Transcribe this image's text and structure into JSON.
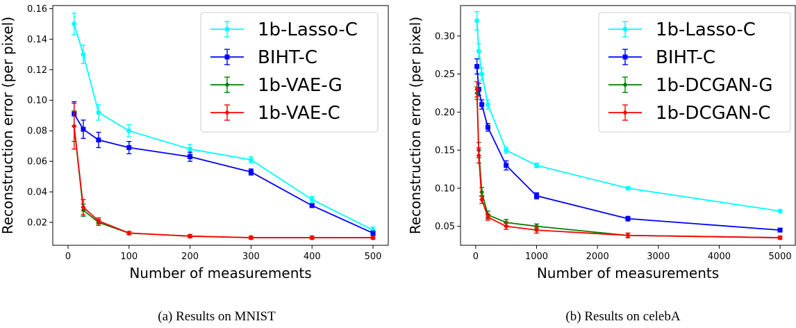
{
  "captions": [
    "(a) Results on MNIST",
    "(b) Results on celebA"
  ],
  "chart_data": [
    {
      "type": "line",
      "xlabel": "Number of measurements",
      "ylabel": "Reconstruction error (per pixel)",
      "xlim": [
        -25,
        525
      ],
      "ylim": [
        0.005,
        0.162
      ],
      "xticks": [
        0,
        100,
        200,
        300,
        400,
        500
      ],
      "yticks": [
        0.02,
        0.04,
        0.06,
        0.08,
        0.1,
        0.12,
        0.14,
        0.16
      ],
      "ytick_labels": [
        "0.02",
        "0.04",
        "0.06",
        "0.08",
        "0.10",
        "0.12",
        "0.14",
        "0.16"
      ],
      "legend_position": "top-right",
      "series": [
        {
          "name": "1b-Lasso-C",
          "color": "#00ffff",
          "marker": "circle",
          "x": [
            10,
            25,
            50,
            100,
            200,
            300,
            400,
            500
          ],
          "y": [
            0.15,
            0.13,
            0.092,
            0.08,
            0.068,
            0.061,
            0.035,
            0.015
          ],
          "err": [
            0.007,
            0.006,
            0.005,
            0.004,
            0.003,
            0.002,
            0.002,
            0.002
          ]
        },
        {
          "name": "BIHT-C",
          "color": "#0000ff",
          "marker": "square",
          "x": [
            10,
            25,
            50,
            100,
            200,
            300,
            400,
            500
          ],
          "y": [
            0.091,
            0.081,
            0.074,
            0.069,
            0.063,
            0.053,
            0.031,
            0.013
          ],
          "err": [
            0.008,
            0.006,
            0.005,
            0.004,
            0.003,
            0.002,
            0.001,
            0.001
          ]
        },
        {
          "name": "1b-VAE-G",
          "color": "#008000",
          "marker": "diamond",
          "x": [
            10,
            25,
            50,
            100,
            200,
            300,
            400,
            500
          ],
          "y": [
            0.083,
            0.028,
            0.02,
            0.013,
            0.011,
            0.01,
            0.01,
            0.01
          ],
          "err": [
            0.01,
            0.004,
            0.002,
            0.001,
            0.001,
            0.001,
            0.001,
            0.001
          ]
        },
        {
          "name": "1b-VAE-C",
          "color": "#ff0000",
          "marker": "diamond",
          "x": [
            10,
            25,
            50,
            100,
            200,
            300,
            400,
            500
          ],
          "y": [
            0.083,
            0.03,
            0.021,
            0.013,
            0.011,
            0.01,
            0.01,
            0.01
          ],
          "err": [
            0.015,
            0.005,
            0.002,
            0.001,
            0.001,
            0.001,
            0.001,
            0.001
          ]
        }
      ]
    },
    {
      "type": "line",
      "xlabel": "Number of measurements",
      "ylabel": "Reconstruction error (per pixel)",
      "xlim": [
        -250,
        5250
      ],
      "ylim": [
        0.025,
        0.34
      ],
      "xticks": [
        0,
        1000,
        2000,
        3000,
        4000,
        5000
      ],
      "yticks": [
        0.05,
        0.1,
        0.15,
        0.2,
        0.25,
        0.3
      ],
      "ytick_labels": [
        "0.05",
        "0.10",
        "0.15",
        "0.20",
        "0.25",
        "0.30"
      ],
      "legend_position": "top-right",
      "series": [
        {
          "name": "1b-Lasso-C",
          "color": "#00ffff",
          "marker": "circle",
          "x": [
            20,
            50,
            100,
            200,
            500,
            1000,
            2500,
            5000
          ],
          "y": [
            0.32,
            0.28,
            0.25,
            0.21,
            0.15,
            0.13,
            0.1,
            0.07
          ],
          "err": [
            0.012,
            0.01,
            0.008,
            0.006,
            0.004,
            0.003,
            0.002,
            0.001
          ]
        },
        {
          "name": "BIHT-C",
          "color": "#0000ff",
          "marker": "square",
          "x": [
            20,
            50,
            100,
            200,
            500,
            1000,
            2500,
            5000
          ],
          "y": [
            0.26,
            0.23,
            0.21,
            0.18,
            0.13,
            0.09,
            0.06,
            0.045
          ],
          "err": [
            0.01,
            0.008,
            0.006,
            0.005,
            0.006,
            0.004,
            0.003,
            0.002
          ]
        },
        {
          "name": "1b-DCGAN-G",
          "color": "#008000",
          "marker": "diamond",
          "x": [
            20,
            50,
            100,
            200,
            500,
            1000,
            2500,
            5000
          ],
          "y": [
            0.225,
            0.15,
            0.095,
            0.065,
            0.055,
            0.05,
            0.038,
            0.035
          ],
          "err": [
            0.008,
            0.01,
            0.006,
            0.005,
            0.004,
            0.003,
            0.003,
            0.002
          ]
        },
        {
          "name": "1b-DCGAN-C",
          "color": "#ff0000",
          "marker": "diamond",
          "x": [
            20,
            50,
            100,
            200,
            500,
            1000,
            2500,
            5000
          ],
          "y": [
            0.23,
            0.143,
            0.085,
            0.062,
            0.05,
            0.045,
            0.038,
            0.035
          ],
          "err": [
            0.01,
            0.01,
            0.005,
            0.004,
            0.004,
            0.004,
            0.003,
            0.002
          ]
        }
      ]
    }
  ]
}
